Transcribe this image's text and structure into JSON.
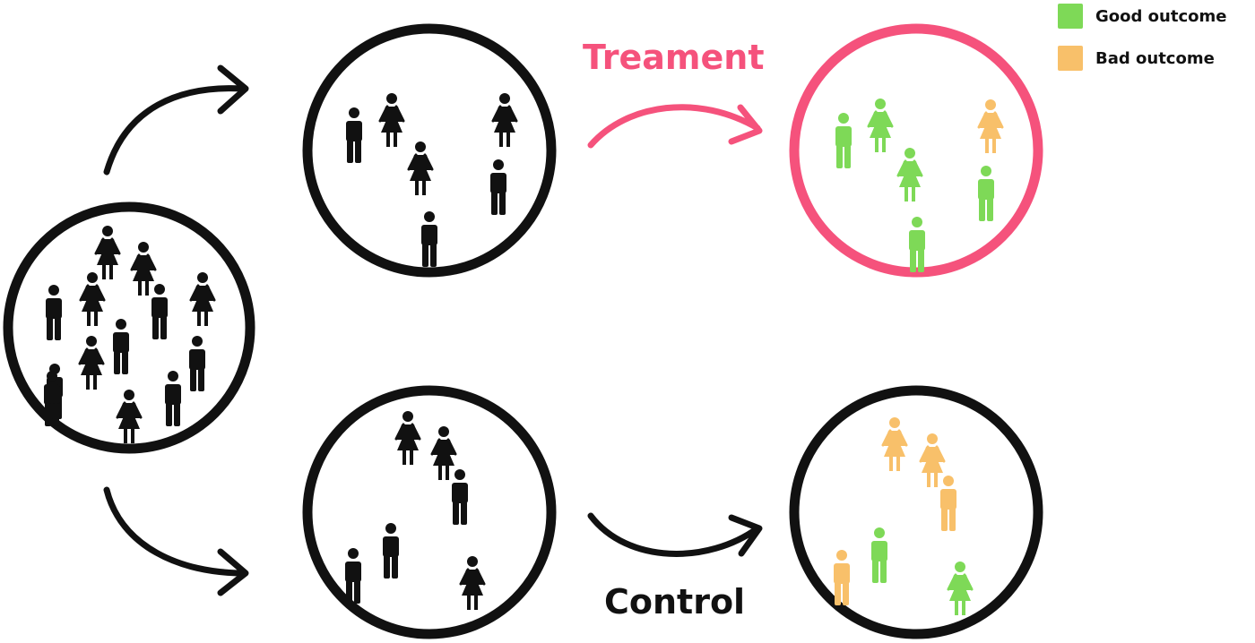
{
  "legend": {
    "items": [
      {
        "label": "Good outcome",
        "color": "#7ed957"
      },
      {
        "label": "Bad outcome",
        "color": "#f8c06a"
      }
    ]
  },
  "arms": {
    "treatment": {
      "label": "Treament",
      "color": "#f5527c"
    },
    "control": {
      "label": "Control",
      "color": "#111111"
    }
  },
  "colors": {
    "neutral": "#111111",
    "good": "#7ed957",
    "bad": "#f8c06a",
    "treatment_ring": "#f5527c",
    "ring": "#111111"
  },
  "groups": {
    "population": {
      "people": [
        "female",
        "female",
        "female",
        "male",
        "male",
        "female",
        "male",
        "female",
        "male",
        "male",
        "male",
        "female",
        "male"
      ]
    },
    "treatment_before": {
      "people": [
        "male",
        "female",
        "female",
        "female",
        "male",
        "male"
      ]
    },
    "treatment_after": {
      "people": [
        {
          "sex": "male",
          "outcome": "good"
        },
        {
          "sex": "female",
          "outcome": "good"
        },
        {
          "sex": "female",
          "outcome": "bad"
        },
        {
          "sex": "female",
          "outcome": "good"
        },
        {
          "sex": "male",
          "outcome": "good"
        },
        {
          "sex": "male",
          "outcome": "good"
        }
      ]
    },
    "control_before": {
      "people": [
        "female",
        "female",
        "male",
        "male",
        "male",
        "female"
      ]
    },
    "control_after": {
      "people": [
        {
          "sex": "female",
          "outcome": "bad"
        },
        {
          "sex": "female",
          "outcome": "bad"
        },
        {
          "sex": "male",
          "outcome": "bad"
        },
        {
          "sex": "male",
          "outcome": "good"
        },
        {
          "sex": "male",
          "outcome": "bad"
        },
        {
          "sex": "female",
          "outcome": "good"
        }
      ]
    }
  }
}
